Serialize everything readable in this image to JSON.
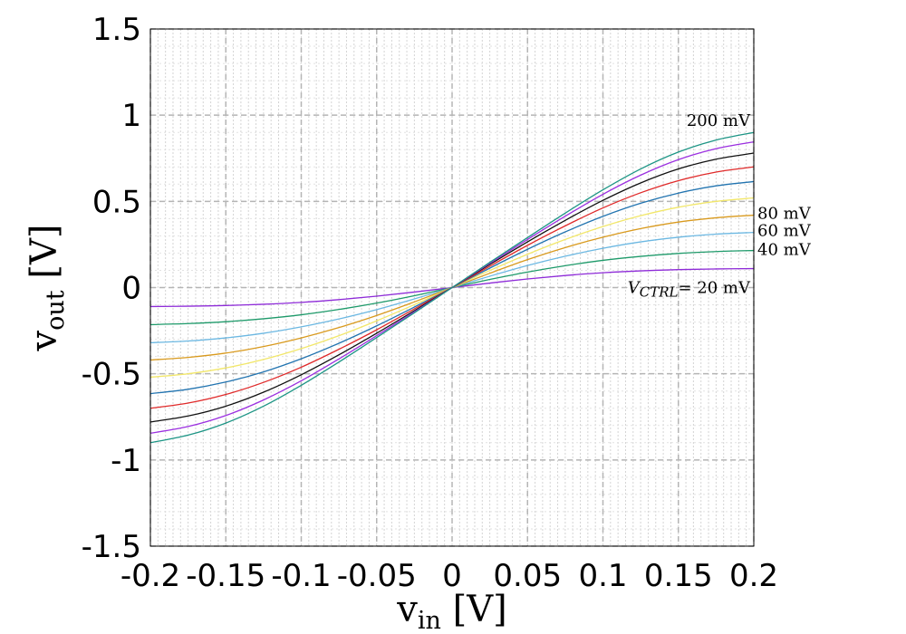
{
  "chart_data": {
    "type": "line",
    "xlabel": {
      "main": "v",
      "sub": "in",
      "unit": " [V]"
    },
    "ylabel": {
      "main": "v",
      "sub": "out",
      "unit": " [V]"
    },
    "xlim": [
      -0.2,
      0.2
    ],
    "ylim": [
      -1.5,
      1.5
    ],
    "x_ticks": [
      -0.2,
      -0.15,
      -0.1,
      -0.05,
      0,
      0.05,
      0.1,
      0.15,
      0.2
    ],
    "x_tick_labels": [
      "-0.2",
      "-0.15",
      "-0.1",
      "-0.05",
      "0",
      "0.05",
      "0.1",
      "0.15",
      "0.2"
    ],
    "y_ticks": [
      -1.5,
      -1,
      -0.5,
      0,
      0.5,
      1,
      1.5
    ],
    "y_tick_labels": [
      "-1.5",
      "-1",
      "-0.5",
      "0",
      "0.5",
      "1",
      "1.5"
    ],
    "grid": true,
    "x": [
      -0.2,
      -0.175,
      -0.15,
      -0.125,
      -0.1,
      -0.075,
      -0.05,
      -0.025,
      0,
      0.025,
      0.05,
      0.075,
      0.1,
      0.125,
      0.15,
      0.175,
      0.2
    ],
    "series": [
      {
        "color": "#8e2bd8",
        "values": [
          -0.11,
          -0.108,
          -0.104,
          -0.097,
          -0.086,
          -0.07,
          -0.05,
          -0.026,
          0,
          0.026,
          0.05,
          0.07,
          0.086,
          0.097,
          0.104,
          0.108,
          0.11
        ]
      },
      {
        "color": "#1e9a6a",
        "values": [
          -0.215,
          -0.209,
          -0.198,
          -0.181,
          -0.158,
          -0.127,
          -0.09,
          -0.047,
          0,
          0.047,
          0.09,
          0.127,
          0.158,
          0.181,
          0.198,
          0.209,
          0.215
        ]
      },
      {
        "color": "#6cb8e2",
        "values": [
          -0.32,
          -0.31,
          -0.292,
          -0.265,
          -0.228,
          -0.182,
          -0.128,
          -0.066,
          0,
          0.066,
          0.128,
          0.182,
          0.228,
          0.265,
          0.292,
          0.31,
          0.32
        ]
      },
      {
        "color": "#d99a1e",
        "values": [
          -0.42,
          -0.405,
          -0.38,
          -0.342,
          -0.292,
          -0.232,
          -0.162,
          -0.083,
          0,
          0.083,
          0.162,
          0.232,
          0.292,
          0.342,
          0.38,
          0.405,
          0.42
        ]
      },
      {
        "color": "#f2e76a",
        "values": [
          -0.52,
          -0.5,
          -0.466,
          -0.417,
          -0.354,
          -0.279,
          -0.193,
          -0.099,
          0,
          0.099,
          0.193,
          0.279,
          0.354,
          0.417,
          0.466,
          0.5,
          0.52
        ]
      },
      {
        "color": "#2274b0",
        "values": [
          -0.615,
          -0.59,
          -0.548,
          -0.489,
          -0.413,
          -0.323,
          -0.222,
          -0.113,
          0,
          0.113,
          0.222,
          0.323,
          0.413,
          0.489,
          0.548,
          0.59,
          0.615
        ]
      },
      {
        "color": "#e02a2a",
        "values": [
          -0.7,
          -0.67,
          -0.62,
          -0.55,
          -0.462,
          -0.358,
          -0.245,
          -0.124,
          0,
          0.124,
          0.245,
          0.358,
          0.462,
          0.55,
          0.62,
          0.67,
          0.7
        ]
      },
      {
        "color": "#111111",
        "values": [
          -0.78,
          -0.745,
          -0.688,
          -0.607,
          -0.506,
          -0.39,
          -0.265,
          -0.134,
          0,
          0.134,
          0.265,
          0.39,
          0.506,
          0.607,
          0.688,
          0.745,
          0.78
        ]
      },
      {
        "color": "#9b2fe0",
        "values": [
          -0.845,
          -0.806,
          -0.742,
          -0.652,
          -0.541,
          -0.414,
          -0.279,
          -0.141,
          0,
          0.141,
          0.279,
          0.414,
          0.541,
          0.652,
          0.742,
          0.806,
          0.845
        ]
      },
      {
        "color": "#1d9585",
        "values": [
          -0.9,
          -0.856,
          -0.786,
          -0.688,
          -0.567,
          -0.432,
          -0.29,
          -0.146,
          0,
          0.146,
          0.29,
          0.432,
          0.567,
          0.688,
          0.786,
          0.856,
          0.9
        ]
      }
    ],
    "annotations": [
      {
        "text": "200 mV",
        "x": 0.2,
        "y": 0.97,
        "anchor": "end"
      },
      {
        "text": "80 mV",
        "x": 0.2,
        "y": 0.43,
        "anchor": "start"
      },
      {
        "text": "60 mV",
        "x": 0.2,
        "y": 0.33,
        "anchor": "start"
      },
      {
        "text": "40 mV",
        "x": 0.2,
        "y": 0.22,
        "anchor": "start"
      },
      {
        "text": "= 20 mV",
        "prefix": "V",
        "prefix_sub": "CTRL",
        "x": 0.2,
        "y": 0,
        "anchor": "end"
      }
    ]
  }
}
